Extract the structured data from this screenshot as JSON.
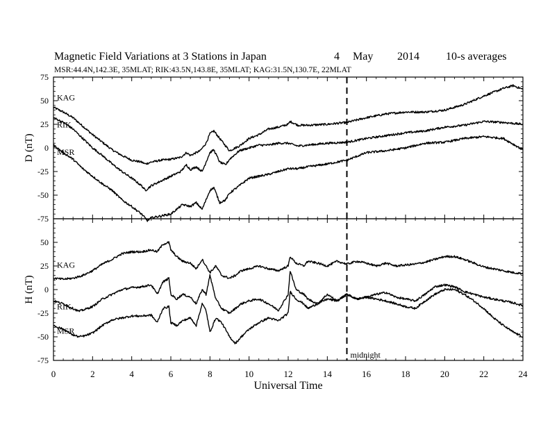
{
  "header": {
    "title": "Magnetic Field Variations at 3 Stations in Japan",
    "day": "4",
    "month": "May",
    "year": "2014",
    "averaging": "10-s averages",
    "stations_line": "MSR:44.4N,142.3E, 35MLAT;  RIK:43.5N,143.8E, 35MLAT;  KAG:31.5N,130.7E, 22MLAT"
  },
  "chart_data": [
    {
      "type": "line",
      "panel": "top",
      "ylabel": "D (nT)",
      "ylim": [
        -75,
        75
      ],
      "yticks": [
        -75,
        -50,
        -25,
        0,
        25,
        50,
        75
      ],
      "xlim": [
        0,
        24
      ],
      "series": [
        {
          "name": "KAG",
          "x": [
            0,
            0.5,
            1,
            1.5,
            2,
            2.5,
            3,
            3.5,
            4,
            4.5,
            4.7,
            5,
            5.5,
            6,
            6.5,
            6.8,
            7,
            7.5,
            7.8,
            8,
            8.2,
            8.5,
            9,
            9.5,
            10,
            10.5,
            11,
            11.5,
            12,
            12.1,
            12.5,
            13,
            14,
            15,
            16,
            17,
            18,
            19,
            20,
            21,
            22,
            23,
            23.5,
            24
          ],
          "y": [
            43,
            38,
            32,
            23,
            14,
            6,
            -2,
            -8,
            -13,
            -15,
            -17,
            -15,
            -13,
            -12,
            -10,
            -5,
            -8,
            -3,
            5,
            15,
            18,
            10,
            -3,
            2,
            10,
            14,
            20,
            22,
            25,
            28,
            24,
            24,
            25,
            27,
            32,
            36,
            38,
            38,
            40,
            46,
            55,
            63,
            66,
            62
          ]
        },
        {
          "name": "RIK",
          "x": [
            0,
            0.5,
            1,
            1.5,
            2,
            2.5,
            3,
            3.5,
            4,
            4.5,
            4.7,
            5,
            5.5,
            6,
            6.5,
            6.8,
            7,
            7.3,
            7.6,
            8,
            8.2,
            8.5,
            8.8,
            9,
            9.5,
            10,
            10.5,
            11,
            11.5,
            12,
            12.5,
            13,
            14,
            15,
            16,
            17,
            18,
            19,
            20,
            21,
            22,
            23,
            24
          ],
          "y": [
            32,
            27,
            20,
            10,
            0,
            -8,
            -17,
            -25,
            -32,
            -40,
            -45,
            -40,
            -35,
            -30,
            -25,
            -18,
            -23,
            -20,
            -25,
            -5,
            -2,
            -15,
            -18,
            -12,
            -3,
            0,
            3,
            3,
            5,
            5,
            2,
            3,
            5,
            6,
            10,
            13,
            16,
            18,
            22,
            24,
            28,
            27,
            25
          ]
        },
        {
          "name": "MSR",
          "x": [
            0,
            0.5,
            1,
            1.5,
            2,
            2.5,
            3,
            3.5,
            4,
            4.5,
            4.8,
            5,
            5.5,
            6,
            6.3,
            6.6,
            7,
            7.3,
            7.6,
            7.8,
            8,
            8.2,
            8.5,
            8.8,
            9,
            9.5,
            10,
            10.5,
            11,
            11.5,
            12,
            12.5,
            13,
            14,
            15,
            16,
            17,
            18,
            19,
            20,
            21,
            22,
            23,
            24
          ],
          "y": [
            3,
            -5,
            -12,
            -22,
            -30,
            -38,
            -45,
            -55,
            -62,
            -70,
            -77,
            -74,
            -72,
            -70,
            -65,
            -60,
            -62,
            -58,
            -65,
            -55,
            -45,
            -42,
            -58,
            -55,
            -48,
            -40,
            -32,
            -30,
            -28,
            -25,
            -22,
            -22,
            -20,
            -17,
            -13,
            -5,
            -3,
            0,
            5,
            6,
            10,
            12,
            10,
            -2
          ]
        }
      ]
    },
    {
      "type": "line",
      "panel": "bottom",
      "ylabel": "H (nT)",
      "xlabel": "Universal Time",
      "ylim": [
        -75,
        75
      ],
      "yticks": [
        -75,
        -50,
        -25,
        0,
        25,
        50
      ],
      "xlim": [
        0,
        24
      ],
      "xticks": [
        0,
        2,
        4,
        6,
        8,
        10,
        12,
        14,
        16,
        18,
        20,
        22,
        24
      ],
      "series": [
        {
          "name": "KAG",
          "x": [
            0,
            0.5,
            1,
            1.5,
            2,
            2.5,
            3,
            3.5,
            4,
            4.5,
            5,
            5.3,
            5.6,
            5.9,
            6,
            6.3,
            6.6,
            7,
            7.3,
            7.6,
            7.8,
            8,
            8.3,
            8.6,
            9,
            9.3,
            9.6,
            10,
            10.5,
            11,
            11.5,
            12,
            12.1,
            12.4,
            12.8,
            13,
            13.5,
            14,
            14.5,
            15,
            15.5,
            16,
            16.5,
            17,
            17.5,
            18,
            18.5,
            19,
            19.5,
            20,
            20.5,
            21,
            21.5,
            22,
            22.5,
            23,
            23.5,
            24
          ],
          "y": [
            12,
            11,
            12,
            15,
            20,
            27,
            32,
            38,
            40,
            40,
            42,
            40,
            48,
            50,
            42,
            35,
            30,
            28,
            22,
            32,
            25,
            18,
            25,
            15,
            12,
            15,
            20,
            22,
            25,
            22,
            20,
            25,
            35,
            28,
            25,
            30,
            28,
            25,
            30,
            27,
            30,
            28,
            25,
            28,
            25,
            26,
            27,
            29,
            32,
            35,
            35,
            32,
            28,
            24,
            22,
            20,
            18,
            17
          ]
        },
        {
          "name": "RIK",
          "x": [
            0,
            0.5,
            1,
            1.3,
            1.6,
            2,
            2.5,
            3,
            3.5,
            4,
            4.5,
            5,
            5.3,
            5.6,
            5.9,
            6,
            6.3,
            6.6,
            7,
            7.3,
            7.6,
            7.8,
            8,
            8.3,
            8.6,
            9,
            9.3,
            9.6,
            10,
            10.5,
            11,
            11.5,
            12,
            12.1,
            12.4,
            12.8,
            13,
            13.5,
            14,
            14.5,
            15,
            15.5,
            16,
            16.5,
            17,
            17.5,
            18,
            18.5,
            19,
            19.5,
            20,
            20.5,
            21,
            21.5,
            22,
            22.5,
            23,
            23.5,
            24
          ],
          "y": [
            -12,
            -15,
            -20,
            -23,
            -21,
            -18,
            -10,
            -5,
            0,
            2,
            3,
            5,
            -5,
            8,
            12,
            -5,
            -10,
            -5,
            -8,
            -15,
            0,
            -5,
            15,
            -10,
            -20,
            -25,
            -20,
            -15,
            -12,
            -10,
            -15,
            -22,
            -5,
            20,
            0,
            -5,
            -10,
            -15,
            -5,
            -12,
            -5,
            -10,
            -8,
            -5,
            -3,
            -8,
            -10,
            -12,
            -5,
            3,
            5,
            3,
            -2,
            -5,
            -8,
            -10,
            -12,
            -14,
            -17
          ]
        },
        {
          "name": "MSR",
          "x": [
            0,
            0.5,
            1,
            1.3,
            1.6,
            2,
            2.5,
            3,
            3.5,
            4,
            4.5,
            5,
            5.3,
            5.6,
            5.9,
            6,
            6.3,
            6.6,
            7,
            7.3,
            7.6,
            7.8,
            8,
            8.3,
            8.6,
            9,
            9.3,
            9.6,
            10,
            10.5,
            11,
            11.5,
            12,
            12.1,
            12.4,
            12.8,
            13,
            13.5,
            14,
            14.5,
            15,
            15.5,
            16,
            16.5,
            17,
            17.5,
            18,
            18.5,
            19,
            19.5,
            20,
            20.5,
            21,
            21.5,
            22,
            22.5,
            23,
            23.5,
            24
          ],
          "y": [
            -38,
            -42,
            -48,
            -50,
            -49,
            -46,
            -38,
            -32,
            -30,
            -28,
            -28,
            -27,
            -35,
            -20,
            -18,
            -35,
            -38,
            -33,
            -30,
            -38,
            -15,
            -22,
            -45,
            -30,
            -35,
            -50,
            -57,
            -50,
            -42,
            -35,
            -30,
            -33,
            -25,
            -2,
            -10,
            -15,
            -20,
            -15,
            -10,
            -12,
            -5,
            -10,
            -8,
            -10,
            -12,
            -15,
            -18,
            -20,
            -12,
            -5,
            0,
            0,
            -5,
            -12,
            -20,
            -30,
            -38,
            -45,
            -50
          ]
        }
      ]
    }
  ],
  "annotations": {
    "midnight_label": "midnight",
    "midnight_ut": 15
  },
  "labels": {
    "top": {
      "KAG": "KAG",
      "RIK": "RIK",
      "MSR": "MSR"
    },
    "bottom": {
      "KAG": "KAG",
      "RIK": "RIK",
      "MSR": "MSR"
    }
  }
}
